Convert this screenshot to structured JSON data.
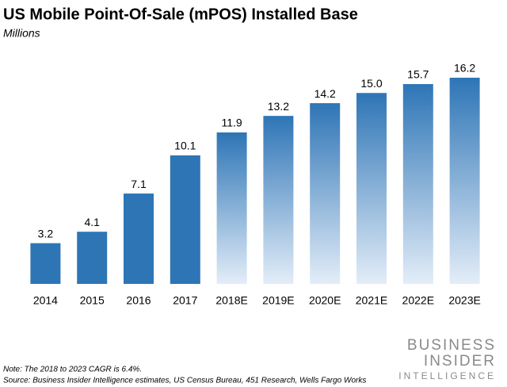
{
  "chart_data": {
    "type": "bar",
    "title": "US Mobile Point-Of-Sale (mPOS) Installed Base",
    "subtitle": "Millions",
    "categories": [
      "2014",
      "2015",
      "2016",
      "2017",
      "2018E",
      "2019E",
      "2020E",
      "2021E",
      "2022E",
      "2023E"
    ],
    "values": [
      3.2,
      4.1,
      7.1,
      10.1,
      11.9,
      13.2,
      14.2,
      15.0,
      15.7,
      16.2
    ],
    "value_labels": [
      "3.2",
      "4.1",
      "7.1",
      "10.1",
      "11.9",
      "13.2",
      "14.2",
      "15.0",
      "15.7",
      "16.2"
    ],
    "color": "#2e75b6",
    "bar_styles": [
      "solid",
      "solid",
      "solid",
      "solid",
      "gradient",
      "gradient",
      "gradient",
      "gradient",
      "gradient",
      "gradient"
    ],
    "note": "Note: The 2018 to 2023 CAGR is 6.4%.",
    "source": "Source: Business Insider Intelligence estimates, US Census Bureau, 451 Research, Wells Fargo Works",
    "logo": [
      "BUSINESS",
      "INSIDER",
      "INTELLIGENCE"
    ]
  }
}
